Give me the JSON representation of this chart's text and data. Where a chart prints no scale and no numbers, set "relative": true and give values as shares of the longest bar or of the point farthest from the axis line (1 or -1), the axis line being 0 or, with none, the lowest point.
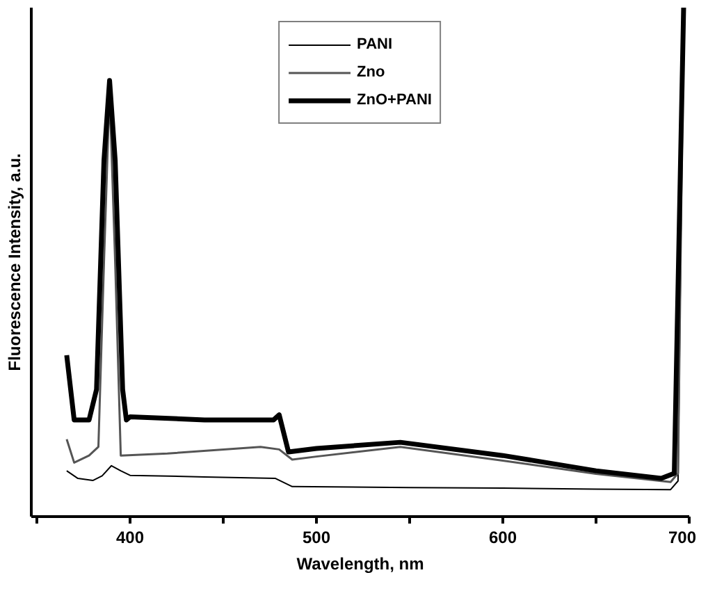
{
  "chart_data": {
    "type": "line",
    "xlabel": "Wavelength, nm",
    "ylabel": "Fluorescence Intensity, a.u.",
    "relative": true,
    "xlim": [
      347,
      700
    ],
    "xticks": [
      {
        "value": 350,
        "label": null
      },
      400,
      {
        "value": 450,
        "label": null
      },
      500,
      {
        "value": 550,
        "label": null
      },
      600,
      {
        "value": 650,
        "label": null
      },
      700
    ],
    "legend": "top",
    "grid": false,
    "series": [
      {
        "name": "PANI",
        "color": "#000000",
        "x": [
          366,
          372,
          380,
          385,
          390,
          395,
          400,
          440,
          478,
          487,
          550,
          600,
          650,
          690,
          694,
          697
        ],
        "values": [
          0.09,
          0.075,
          0.071,
          0.08,
          0.1,
          0.09,
          0.081,
          0.078,
          0.075,
          0.059,
          0.057,
          0.056,
          0.054,
          0.053,
          0.07,
          1.0
        ]
      },
      {
        "name": "Zno",
        "color": "#555555",
        "x": [
          366,
          370,
          378,
          383,
          386,
          389,
          392,
          395,
          420,
          470,
          480,
          487,
          500,
          545,
          600,
          650,
          690,
          694,
          697
        ],
        "values": [
          0.152,
          0.106,
          0.12,
          0.137,
          0.5,
          0.835,
          0.5,
          0.12,
          0.124,
          0.137,
          0.132,
          0.112,
          0.118,
          0.137,
          0.11,
          0.084,
          0.068,
          0.085,
          1.0
        ]
      },
      {
        "name": "ZnO+PANI",
        "color": "#000000",
        "x": [
          366,
          370,
          378,
          382,
          386,
          389,
          392,
          396,
          398,
          400,
          440,
          477,
          480,
          485,
          500,
          545,
          600,
          650,
          685,
          692,
          697
        ],
        "values": [
          0.317,
          0.19,
          0.19,
          0.25,
          0.7,
          0.857,
          0.7,
          0.25,
          0.19,
          0.196,
          0.19,
          0.19,
          0.2,
          0.127,
          0.134,
          0.146,
          0.12,
          0.09,
          0.075,
          0.085,
          1.0
        ]
      }
    ]
  }
}
